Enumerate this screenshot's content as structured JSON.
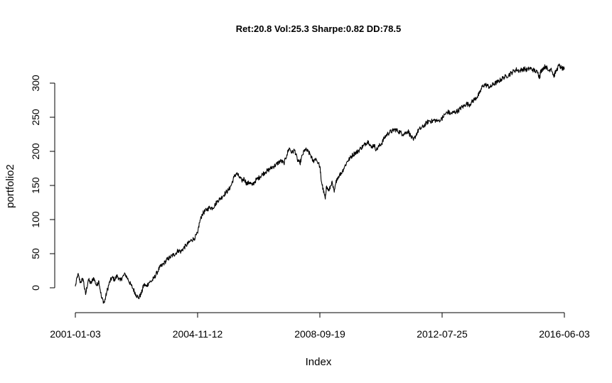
{
  "chart_data": {
    "type": "line",
    "title": "Ret:20.8 Vol:25.3 Sharpe:0.82 DD:78.5",
    "xlabel": "Index",
    "ylabel": "portfolio2",
    "x_tick_labels": [
      "2001-01-03",
      "2004-11-12",
      "2008-09-19",
      "2012-07-25",
      "2016-06-03"
    ],
    "y_ticks": [
      0,
      50,
      100,
      150,
      200,
      250,
      300
    ],
    "xlim": [
      "2001-01-03",
      "2016-06-03"
    ],
    "ylim": [
      -25,
      325
    ],
    "grid": false,
    "series": [
      {
        "color": "#000000",
        "points": [
          [
            "2001-01-03",
            2
          ],
          [
            "2001-02-01",
            20
          ],
          [
            "2001-03-01",
            8
          ],
          [
            "2001-04-02",
            13
          ],
          [
            "2001-05-01",
            -10
          ],
          [
            "2001-06-01",
            12
          ],
          [
            "2001-07-02",
            6
          ],
          [
            "2001-08-01",
            15
          ],
          [
            "2001-09-04",
            3
          ],
          [
            "2001-10-01",
            10
          ],
          [
            "2001-11-01",
            -15
          ],
          [
            "2001-12-03",
            -22
          ],
          [
            "2002-01-02",
            -5
          ],
          [
            "2002-02-01",
            8
          ],
          [
            "2002-03-01",
            15
          ],
          [
            "2002-04-01",
            12
          ],
          [
            "2002-05-01",
            18
          ],
          [
            "2002-06-03",
            10
          ],
          [
            "2002-07-01",
            16
          ],
          [
            "2002-08-01",
            20
          ],
          [
            "2002-09-03",
            12
          ],
          [
            "2002-10-01",
            5
          ],
          [
            "2002-11-01",
            -2
          ],
          [
            "2002-12-02",
            -10
          ],
          [
            "2003-01-02",
            -15
          ],
          [
            "2003-02-03",
            -8
          ],
          [
            "2003-03-03",
            5
          ],
          [
            "2003-04-01",
            2
          ],
          [
            "2003-05-01",
            8
          ],
          [
            "2003-06-02",
            10
          ],
          [
            "2003-07-01",
            15
          ],
          [
            "2003-08-01",
            22
          ],
          [
            "2003-09-02",
            30
          ],
          [
            "2003-10-01",
            33
          ],
          [
            "2003-11-03",
            38
          ],
          [
            "2003-12-01",
            42
          ],
          [
            "2004-01-02",
            45
          ],
          [
            "2004-02-02",
            48
          ],
          [
            "2004-03-01",
            50
          ],
          [
            "2004-04-01",
            55
          ],
          [
            "2004-05-03",
            53
          ],
          [
            "2004-06-01",
            58
          ],
          [
            "2004-07-01",
            62
          ],
          [
            "2004-08-02",
            66
          ],
          [
            "2004-09-01",
            70
          ],
          [
            "2004-10-01",
            72
          ],
          [
            "2004-11-12",
            80
          ],
          [
            "2004-12-01",
            95
          ],
          [
            "2005-01-03",
            108
          ],
          [
            "2005-02-01",
            112
          ],
          [
            "2005-03-01",
            115
          ],
          [
            "2005-04-01",
            118
          ],
          [
            "2005-05-02",
            117
          ],
          [
            "2005-06-01",
            122
          ],
          [
            "2005-07-01",
            128
          ],
          [
            "2005-08-01",
            131
          ],
          [
            "2005-09-01",
            135
          ],
          [
            "2005-10-03",
            140
          ],
          [
            "2005-11-01",
            143
          ],
          [
            "2005-12-01",
            150
          ],
          [
            "2006-01-03",
            162
          ],
          [
            "2006-02-01",
            168
          ],
          [
            "2006-03-01",
            163
          ],
          [
            "2006-04-03",
            157
          ],
          [
            "2006-05-01",
            160
          ],
          [
            "2006-06-01",
            152
          ],
          [
            "2006-07-03",
            155
          ],
          [
            "2006-08-01",
            150
          ],
          [
            "2006-09-01",
            156
          ],
          [
            "2006-10-02",
            160
          ],
          [
            "2006-11-01",
            163
          ],
          [
            "2006-12-01",
            167
          ],
          [
            "2007-01-03",
            170
          ],
          [
            "2007-02-01",
            172
          ],
          [
            "2007-03-01",
            175
          ],
          [
            "2007-04-02",
            178
          ],
          [
            "2007-05-01",
            180
          ],
          [
            "2007-06-01",
            184
          ],
          [
            "2007-07-02",
            186
          ],
          [
            "2007-08-01",
            182
          ],
          [
            "2007-09-04",
            195
          ],
          [
            "2007-10-01",
            205
          ],
          [
            "2007-11-01",
            198
          ],
          [
            "2007-12-03",
            202
          ],
          [
            "2008-01-02",
            188
          ],
          [
            "2008-02-01",
            182
          ],
          [
            "2008-03-03",
            195
          ],
          [
            "2008-04-01",
            203
          ],
          [
            "2008-05-01",
            200
          ],
          [
            "2008-06-02",
            195
          ],
          [
            "2008-07-01",
            185
          ],
          [
            "2008-08-01",
            190
          ],
          [
            "2008-09-19",
            178
          ],
          [
            "2008-10-01",
            160
          ],
          [
            "2008-10-24",
            145
          ],
          [
            "2008-11-20",
            130
          ],
          [
            "2008-12-01",
            148
          ],
          [
            "2009-01-02",
            142
          ],
          [
            "2009-02-02",
            155
          ],
          [
            "2009-03-02",
            140
          ],
          [
            "2009-04-01",
            160
          ],
          [
            "2009-05-01",
            165
          ],
          [
            "2009-06-01",
            170
          ],
          [
            "2009-07-01",
            178
          ],
          [
            "2009-08-03",
            186
          ],
          [
            "2009-09-01",
            190
          ],
          [
            "2009-10-01",
            195
          ],
          [
            "2009-11-02",
            198
          ],
          [
            "2009-12-01",
            200
          ],
          [
            "2010-01-04",
            205
          ],
          [
            "2010-02-01",
            208
          ],
          [
            "2010-03-01",
            212
          ],
          [
            "2010-04-01",
            215
          ],
          [
            "2010-05-03",
            205
          ],
          [
            "2010-06-01",
            210
          ],
          [
            "2010-07-01",
            202
          ],
          [
            "2010-08-02",
            208
          ],
          [
            "2010-09-01",
            212
          ],
          [
            "2010-10-01",
            220
          ],
          [
            "2010-11-01",
            225
          ],
          [
            "2010-12-01",
            228
          ],
          [
            "2011-01-03",
            230
          ],
          [
            "2011-02-01",
            232
          ],
          [
            "2011-03-01",
            230
          ],
          [
            "2011-04-01",
            228
          ],
          [
            "2011-05-02",
            225
          ],
          [
            "2011-06-01",
            227
          ],
          [
            "2011-07-01",
            230
          ],
          [
            "2011-08-01",
            222
          ],
          [
            "2011-09-01",
            216
          ],
          [
            "2011-10-03",
            225
          ],
          [
            "2011-11-01",
            232
          ],
          [
            "2011-12-01",
            234
          ],
          [
            "2012-01-03",
            238
          ],
          [
            "2012-02-01",
            242
          ],
          [
            "2012-03-01",
            245
          ],
          [
            "2012-04-02",
            244
          ],
          [
            "2012-05-01",
            246
          ],
          [
            "2012-06-01",
            244
          ],
          [
            "2012-07-25",
            248
          ],
          [
            "2012-08-01",
            250
          ],
          [
            "2012-09-04",
            255
          ],
          [
            "2012-10-01",
            258
          ],
          [
            "2012-11-01",
            255
          ],
          [
            "2012-12-03",
            257
          ],
          [
            "2013-01-02",
            258
          ],
          [
            "2013-02-01",
            260
          ],
          [
            "2013-03-01",
            264
          ],
          [
            "2013-04-01",
            266
          ],
          [
            "2013-05-01",
            270
          ],
          [
            "2013-06-03",
            268
          ],
          [
            "2013-07-01",
            272
          ],
          [
            "2013-08-01",
            276
          ],
          [
            "2013-09-03",
            280
          ],
          [
            "2013-10-01",
            285
          ],
          [
            "2013-11-01",
            295
          ],
          [
            "2013-12-02",
            298
          ],
          [
            "2014-01-02",
            296
          ],
          [
            "2014-02-03",
            294
          ],
          [
            "2014-03-03",
            298
          ],
          [
            "2014-04-01",
            300
          ],
          [
            "2014-05-01",
            302
          ],
          [
            "2014-06-02",
            305
          ],
          [
            "2014-07-01",
            308
          ],
          [
            "2014-08-01",
            310
          ],
          [
            "2014-09-02",
            312
          ],
          [
            "2014-10-01",
            315
          ],
          [
            "2014-11-03",
            318
          ],
          [
            "2014-12-01",
            320
          ],
          [
            "2015-01-02",
            318
          ],
          [
            "2015-02-02",
            320
          ],
          [
            "2015-03-02",
            321
          ],
          [
            "2015-04-01",
            319
          ],
          [
            "2015-05-01",
            322
          ],
          [
            "2015-06-01",
            320
          ],
          [
            "2015-07-01",
            318
          ],
          [
            "2015-08-03",
            315
          ],
          [
            "2015-08-24",
            308
          ],
          [
            "2015-09-01",
            316
          ],
          [
            "2015-10-01",
            322
          ],
          [
            "2015-11-02",
            325
          ],
          [
            "2015-12-01",
            318
          ],
          [
            "2016-01-04",
            322
          ],
          [
            "2016-02-01",
            310
          ],
          [
            "2016-03-01",
            318
          ],
          [
            "2016-04-01",
            326
          ],
          [
            "2016-05-02",
            322
          ],
          [
            "2016-06-03",
            320
          ]
        ]
      }
    ]
  }
}
